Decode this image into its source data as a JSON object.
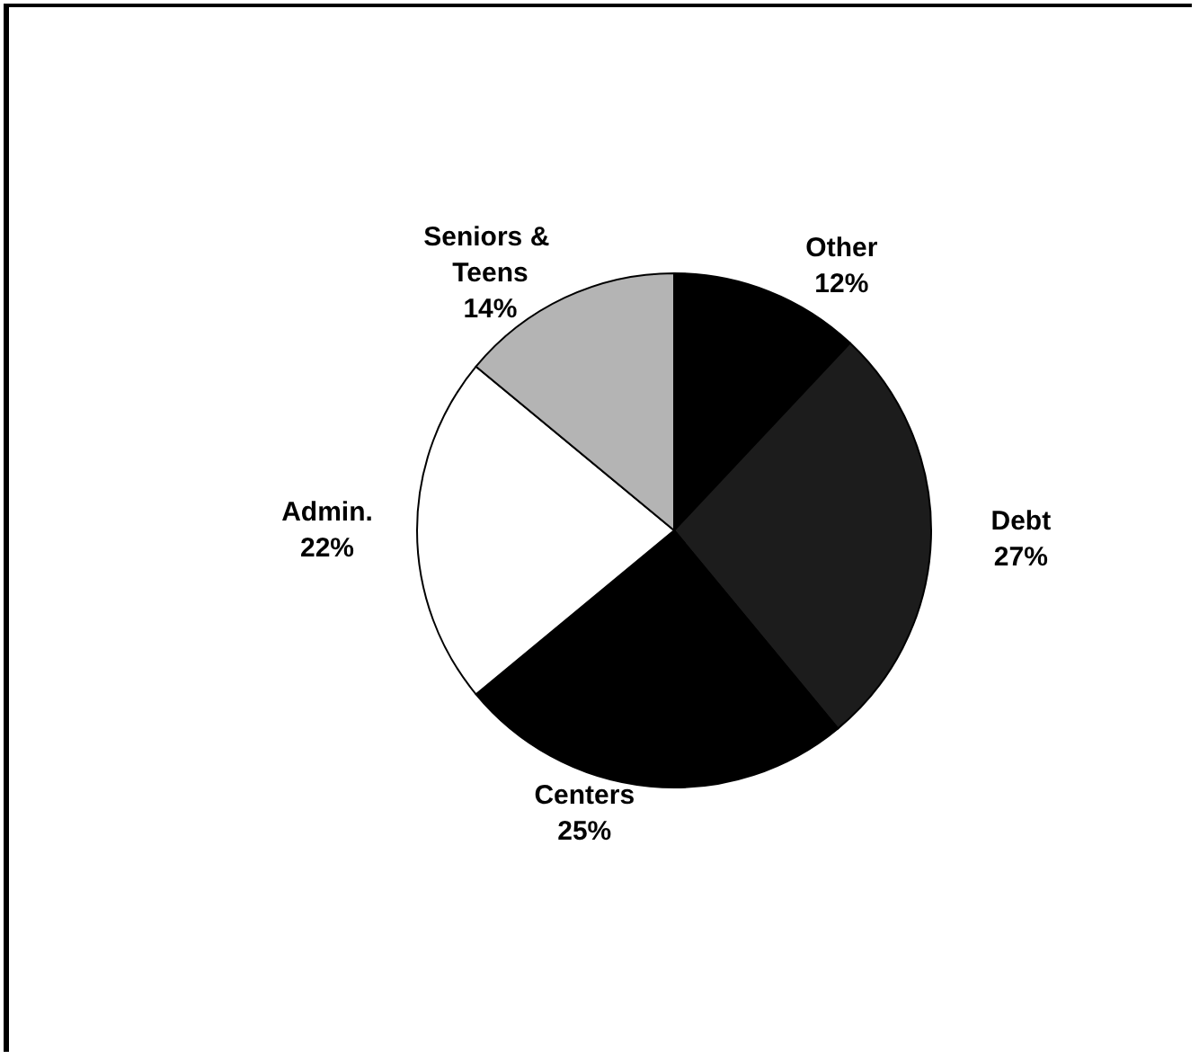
{
  "chart_data": {
    "type": "pie",
    "categories": [
      "Other",
      "Debt",
      "Centers",
      "Admin.",
      "Seniors & Teens"
    ],
    "values": [
      12,
      27,
      25,
      22,
      14
    ],
    "colors": [
      "#000000",
      "#1c1c1c",
      "#000000",
      "#ffffff",
      "#b4b4b4"
    ],
    "value_labels": [
      "12%",
      "27%",
      "25%",
      "22%",
      "14%"
    ],
    "legend": false
  }
}
